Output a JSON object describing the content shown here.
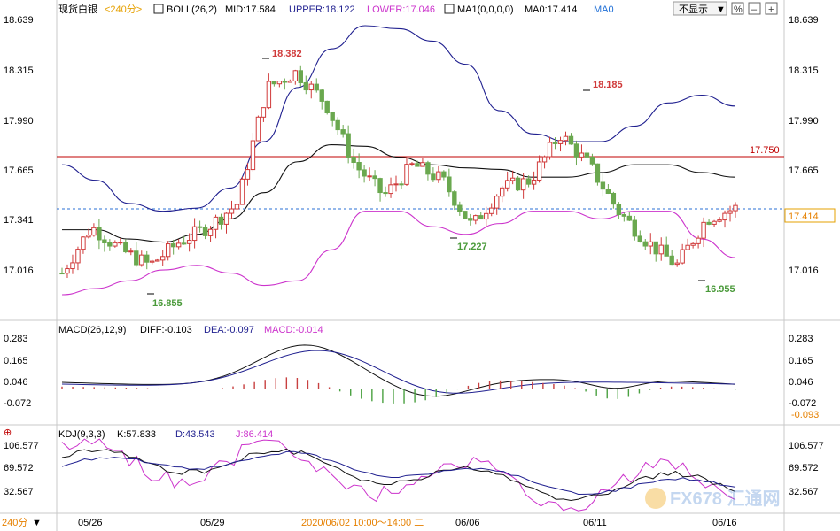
{
  "header": {
    "symbol": "现货白银",
    "period": "<240分>",
    "boll_title": "BOLL(26,2)",
    "boll_mid": "MID:17.584",
    "boll_upper": "UPPER:18.122",
    "boll_lower": "LOWER:17.046",
    "ma_title": "MA1(0,0,0,0)",
    "ma0_value": "MA0:17.414",
    "ma0_label": "MA0",
    "dropdown_label": "不显示"
  },
  "main_axis": {
    "ticks": [
      "18.639",
      "18.315",
      "17.990",
      "17.665",
      "17.341",
      "17.016"
    ],
    "current_price": "17.414",
    "hline_value": "17.750",
    "annotations": {
      "high1": "18.382",
      "high2": "18.185",
      "low1": "16.855",
      "low2": "17.227",
      "low3": "16.955"
    }
  },
  "macd": {
    "title": "MACD(26,12,9)",
    "diff": "DIFF:-0.103",
    "dea": "DEA:-0.097",
    "macd": "MACD:-0.014",
    "ticks": [
      "0.283",
      "0.165",
      "0.046",
      "-0.072"
    ],
    "current": "-0.093"
  },
  "kdj": {
    "title": "KDJ(9,3,3)",
    "k": "K:57.833",
    "d": "D:43.543",
    "j": "J:86.414",
    "ticks": [
      "106.577",
      "69.572",
      "32.567"
    ],
    "current": "32.567"
  },
  "xaxis": {
    "period_label": "240分",
    "dates": [
      "05/26",
      "05/29",
      "06/06",
      "06/11",
      "06/16"
    ],
    "crosshair_text": "2020/06/02 10:00～14:00 二"
  },
  "watermark": "FX678 汇通网",
  "colors": {
    "up": "#d03a3a",
    "down": "#6aa84f",
    "boll_band": "#1f1f8f",
    "boll_lower": "#cc33cc",
    "mid": "#111111",
    "hline": "#c00000",
    "dashed": "#2a6fd6",
    "purple": "#8a2be2",
    "macd_pos": "#c84040",
    "macd_neg": "#4aa040"
  },
  "chart_data": {
    "type": "candlestick",
    "title": "现货白银 <240分>",
    "y_range": [
      16.86,
      18.64
    ],
    "series": [
      {
        "name": "UPPER",
        "values": [
          17.7,
          17.6,
          17.45,
          17.4,
          17.42,
          17.55,
          17.85,
          18.2,
          18.45,
          18.6,
          18.58,
          18.5,
          18.35,
          18.05,
          17.9,
          17.85,
          17.85,
          17.95,
          18.1,
          18.15,
          18.08
        ]
      },
      {
        "name": "MID",
        "values": [
          17.28,
          17.28,
          17.22,
          17.2,
          17.25,
          17.35,
          17.52,
          17.72,
          17.83,
          17.82,
          17.75,
          17.7,
          17.68,
          17.67,
          17.62,
          17.62,
          17.65,
          17.7,
          17.7,
          17.65,
          17.62
        ]
      },
      {
        "name": "LOWER",
        "values": [
          16.86,
          16.9,
          16.95,
          17.02,
          17.05,
          17.0,
          16.92,
          16.95,
          17.15,
          17.4,
          17.4,
          17.3,
          17.25,
          17.32,
          17.4,
          17.4,
          17.35,
          17.4,
          17.4,
          17.22,
          17.1
        ]
      }
    ],
    "annotations": [
      {
        "label": "18.382",
        "type": "high"
      },
      {
        "label": "18.185",
        "type": "high"
      },
      {
        "label": "16.855",
        "type": "low"
      },
      {
        "label": "17.227",
        "type": "low"
      },
      {
        "label": "16.955",
        "type": "low"
      }
    ],
    "hline": 17.75,
    "current": 17.414
  }
}
